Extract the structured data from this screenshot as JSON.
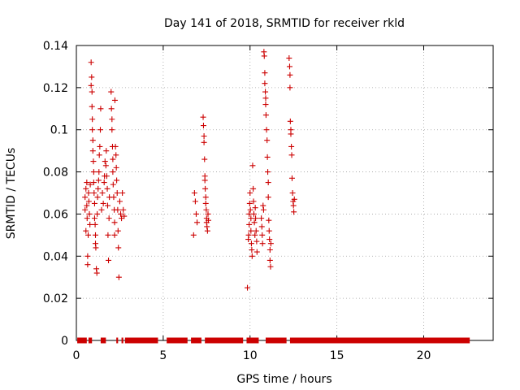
{
  "chart_data": {
    "type": "scatter",
    "title": "Day 141 of 2018, SRMTID for receiver rkld",
    "xlabel": "GPS time / hours",
    "ylabel": "SRMTID / TECUs",
    "xlim": [
      0,
      24
    ],
    "ylim": [
      0,
      0.14
    ],
    "x_ticks": [
      "0",
      "5",
      "10",
      "15",
      "20"
    ],
    "x_tick_values": [
      0,
      5,
      10,
      15,
      20
    ],
    "y_ticks": [
      "0",
      "0.02",
      "0.04",
      "0.06",
      "0.08",
      "0.1",
      "0.12",
      "0.14"
    ],
    "y_tick_values": [
      0,
      0.02,
      0.04,
      0.06,
      0.08,
      0.1,
      0.12,
      0.14
    ],
    "grid": true,
    "marker": "+",
    "color": "#cc0000",
    "series": [
      {
        "name": "SRMTID",
        "points": [
          [
            0.5,
            0.068
          ],
          [
            0.5,
            0.062
          ],
          [
            0.55,
            0.052
          ],
          [
            0.55,
            0.072
          ],
          [
            0.6,
            0.075
          ],
          [
            0.6,
            0.064
          ],
          [
            0.62,
            0.058
          ],
          [
            0.65,
            0.04
          ],
          [
            0.65,
            0.036
          ],
          [
            0.68,
            0.05
          ],
          [
            0.7,
            0.07
          ],
          [
            0.72,
            0.066
          ],
          [
            0.75,
            0.06
          ],
          [
            0.78,
            0.055
          ],
          [
            0.8,
            0.074
          ],
          [
            0.85,
            0.132
          ],
          [
            0.85,
            0.121
          ],
          [
            0.88,
            0.125
          ],
          [
            0.9,
            0.118
          ],
          [
            0.9,
            0.111
          ],
          [
            0.92,
            0.105
          ],
          [
            0.92,
            0.1
          ],
          [
            0.95,
            0.095
          ],
          [
            0.95,
            0.09
          ],
          [
            0.98,
            0.085
          ],
          [
            1.0,
            0.08
          ],
          [
            1.0,
            0.075
          ],
          [
            1.02,
            0.07
          ],
          [
            1.05,
            0.065
          ],
          [
            1.05,
            0.058
          ],
          [
            1.08,
            0.055
          ],
          [
            1.1,
            0.05
          ],
          [
            1.1,
            0.046
          ],
          [
            1.12,
            0.044
          ],
          [
            1.15,
            0.034
          ],
          [
            1.18,
            0.032
          ],
          [
            1.2,
            0.06
          ],
          [
            1.22,
            0.068
          ],
          [
            1.25,
            0.072
          ],
          [
            1.28,
            0.076
          ],
          [
            1.3,
            0.08
          ],
          [
            1.32,
            0.088
          ],
          [
            1.35,
            0.092
          ],
          [
            1.38,
            0.1
          ],
          [
            1.4,
            0.11
          ],
          [
            1.45,
            0.062
          ],
          [
            1.5,
            0.07
          ],
          [
            1.55,
            0.065
          ],
          [
            1.6,
            0.075
          ],
          [
            1.62,
            0.078
          ],
          [
            1.65,
            0.085
          ],
          [
            1.7,
            0.083
          ],
          [
            1.72,
            0.09
          ],
          [
            1.75,
            0.078
          ],
          [
            1.78,
            0.072
          ],
          [
            1.8,
            0.064
          ],
          [
            1.82,
            0.05
          ],
          [
            1.85,
            0.038
          ],
          [
            1.88,
            0.058
          ],
          [
            1.9,
            0.068
          ],
          [
            2.0,
            0.118
          ],
          [
            2.02,
            0.11
          ],
          [
            2.05,
            0.105
          ],
          [
            2.05,
            0.1
          ],
          [
            2.08,
            0.092
          ],
          [
            2.1,
            0.086
          ],
          [
            2.1,
            0.08
          ],
          [
            2.12,
            0.074
          ],
          [
            2.15,
            0.068
          ],
          [
            2.18,
            0.062
          ],
          [
            2.2,
            0.056
          ],
          [
            2.2,
            0.05
          ],
          [
            2.22,
            0.114
          ],
          [
            2.25,
            0.092
          ],
          [
            2.28,
            0.088
          ],
          [
            2.3,
            0.082
          ],
          [
            2.32,
            0.076
          ],
          [
            2.35,
            0.07
          ],
          [
            2.38,
            0.062
          ],
          [
            2.4,
            0.052
          ],
          [
            2.42,
            0.044
          ],
          [
            2.45,
            0.03
          ],
          [
            2.5,
            0.066
          ],
          [
            2.55,
            0.06
          ],
          [
            2.6,
            0.058
          ],
          [
            2.65,
            0.07
          ],
          [
            2.7,
            0.062
          ],
          [
            2.75,
            0.059
          ],
          [
            6.75,
            0.05
          ],
          [
            6.8,
            0.07
          ],
          [
            6.85,
            0.066
          ],
          [
            6.9,
            0.06
          ],
          [
            6.95,
            0.056
          ],
          [
            7.3,
            0.106
          ],
          [
            7.32,
            0.102
          ],
          [
            7.35,
            0.097
          ],
          [
            7.35,
            0.094
          ],
          [
            7.38,
            0.086
          ],
          [
            7.4,
            0.078
          ],
          [
            7.4,
            0.076
          ],
          [
            7.42,
            0.072
          ],
          [
            7.45,
            0.068
          ],
          [
            7.45,
            0.065
          ],
          [
            7.48,
            0.062
          ],
          [
            7.5,
            0.058
          ],
          [
            7.5,
            0.056
          ],
          [
            7.52,
            0.054
          ],
          [
            7.55,
            0.052
          ],
          [
            7.58,
            0.06
          ],
          [
            7.6,
            0.057
          ],
          [
            9.85,
            0.025
          ],
          [
            9.9,
            0.048
          ],
          [
            9.92,
            0.05
          ],
          [
            9.95,
            0.055
          ],
          [
            9.95,
            0.06
          ],
          [
            9.98,
            0.065
          ],
          [
            10.0,
            0.07
          ],
          [
            10.02,
            0.062
          ],
          [
            10.05,
            0.058
          ],
          [
            10.05,
            0.052
          ],
          [
            10.08,
            0.046
          ],
          [
            10.1,
            0.043
          ],
          [
            10.12,
            0.04
          ],
          [
            10.15,
            0.083
          ],
          [
            10.18,
            0.072
          ],
          [
            10.2,
            0.066
          ],
          [
            10.22,
            0.06
          ],
          [
            10.25,
            0.056
          ],
          [
            10.28,
            0.05
          ],
          [
            10.3,
            0.063
          ],
          [
            10.32,
            0.058
          ],
          [
            10.35,
            0.052
          ],
          [
            10.38,
            0.047
          ],
          [
            10.4,
            0.042
          ],
          [
            10.65,
            0.058
          ],
          [
            10.68,
            0.054
          ],
          [
            10.7,
            0.05
          ],
          [
            10.72,
            0.046
          ],
          [
            10.75,
            0.064
          ],
          [
            10.78,
            0.062
          ],
          [
            10.8,
            0.137
          ],
          [
            10.82,
            0.135
          ],
          [
            10.85,
            0.127
          ],
          [
            10.85,
            0.122
          ],
          [
            10.88,
            0.118
          ],
          [
            10.9,
            0.115
          ],
          [
            10.9,
            0.112
          ],
          [
            10.92,
            0.107
          ],
          [
            10.95,
            0.1
          ],
          [
            10.98,
            0.095
          ],
          [
            11.0,
            0.087
          ],
          [
            11.02,
            0.08
          ],
          [
            11.05,
            0.075
          ],
          [
            11.05,
            0.068
          ],
          [
            11.08,
            0.057
          ],
          [
            11.1,
            0.052
          ],
          [
            11.12,
            0.048
          ],
          [
            11.15,
            0.043
          ],
          [
            11.15,
            0.038
          ],
          [
            11.18,
            0.035
          ],
          [
            11.2,
            0.046
          ],
          [
            12.25,
            0.134
          ],
          [
            12.28,
            0.13
          ],
          [
            12.3,
            0.126
          ],
          [
            12.3,
            0.12
          ],
          [
            12.32,
            0.104
          ],
          [
            12.35,
            0.1
          ],
          [
            12.35,
            0.098
          ],
          [
            12.38,
            0.092
          ],
          [
            12.4,
            0.088
          ],
          [
            12.42,
            0.077
          ],
          [
            12.45,
            0.07
          ],
          [
            12.48,
            0.066
          ],
          [
            12.5,
            0.064
          ],
          [
            12.52,
            0.061
          ],
          [
            12.55,
            0.067
          ]
        ]
      }
    ],
    "baseline_zero_segments": [
      [
        0.05,
        0.6
      ],
      [
        0.7,
        0.9
      ],
      [
        1.4,
        1.7
      ],
      [
        2.3,
        2.4
      ],
      [
        2.6,
        2.7
      ],
      [
        2.8,
        4.7
      ],
      [
        5.2,
        6.4
      ],
      [
        6.6,
        7.2
      ],
      [
        7.4,
        9.6
      ],
      [
        9.8,
        10.5
      ],
      [
        10.9,
        12.1
      ],
      [
        12.3,
        22.65
      ]
    ]
  }
}
